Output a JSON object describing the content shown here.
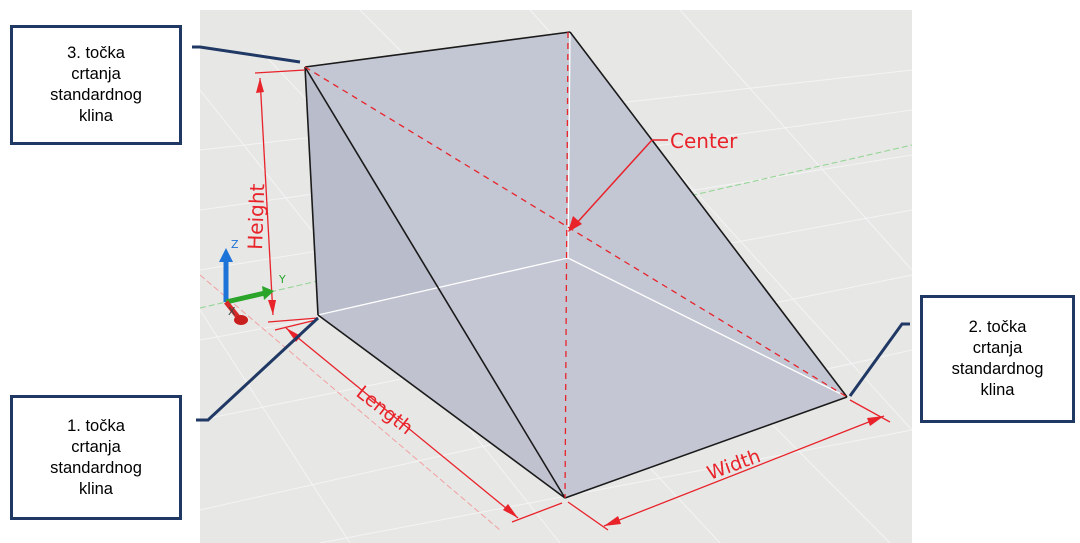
{
  "callouts": {
    "point1": [
      "1. točka",
      "crtanja",
      "standardnog",
      "klina"
    ],
    "point2": [
      "2. točka",
      "crtanja",
      "standardnog",
      "klina"
    ],
    "point3": [
      "3. točka",
      "crtanja",
      "standardnog",
      "klina"
    ]
  },
  "dimensions": {
    "height": "Height",
    "length": "Length",
    "width": "Width",
    "center": "Center"
  },
  "axes": {
    "x": "X",
    "y": "Y",
    "z": "Z"
  },
  "colors": {
    "callout_border": "#1f3864",
    "dimension": "#e8232a",
    "face": "#c3c6d3",
    "background": "#e7e7e6"
  }
}
